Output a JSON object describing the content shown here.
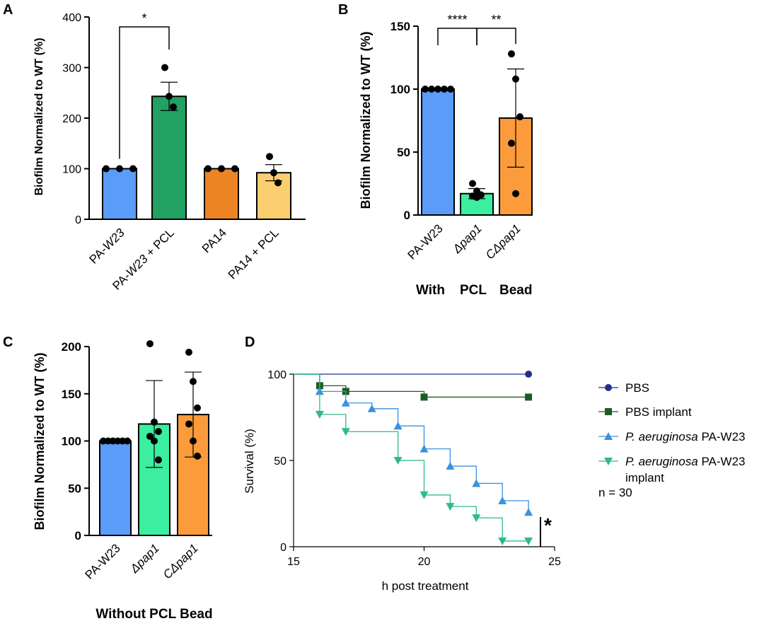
{
  "panels": {
    "A": {
      "letter": "A"
    },
    "B": {
      "letter": "B",
      "group_label_words": [
        "With",
        "PCL",
        "Bead"
      ]
    },
    "C": {
      "letter": "C",
      "group_label": "Without PCL Bead"
    },
    "D": {
      "letter": "D",
      "n_label": "n = 30",
      "sig_label": "*"
    }
  },
  "chart_data": [
    {
      "panel": "A",
      "type": "bar",
      "ylabel": "Biofilm Normalized to  WT (%)",
      "ylim": [
        0,
        400
      ],
      "yticks": [
        0,
        100,
        200,
        300,
        400
      ],
      "categories": [
        "PA-W23",
        "PA-W23 + PCL",
        "PA14",
        "PA14 + PCL"
      ],
      "category_italic": [
        "W23",
        "W23",
        "",
        ""
      ],
      "values": [
        100,
        243,
        100,
        92
      ],
      "error": [
        0,
        28,
        0,
        16
      ],
      "points": [
        [
          100,
          100,
          100
        ],
        [
          300,
          243,
          222
        ],
        [
          100,
          100,
          100
        ],
        [
          124,
          92,
          72
        ]
      ],
      "colors": [
        "#5a9cf8",
        "#21a162",
        "#ec8424",
        "#fbcf70"
      ],
      "significance": [
        {
          "from": 0,
          "to": 1,
          "label": "*"
        }
      ]
    },
    {
      "panel": "B",
      "type": "bar",
      "ylabel": "Biofilm Normalized to  WT (%)",
      "ylim": [
        0,
        150
      ],
      "yticks": [
        0,
        50,
        100,
        150
      ],
      "categories": [
        "PA-W23",
        "Δpap1",
        "CΔpap1"
      ],
      "values": [
        100,
        17,
        77
      ],
      "error": [
        0,
        4,
        39
      ],
      "points": [
        [
          100,
          100,
          100,
          100,
          100
        ],
        [
          25,
          19,
          16,
          15,
          14
        ],
        [
          128,
          108,
          78,
          57,
          17
        ]
      ],
      "colors": [
        "#5a9cf8",
        "#3ceea0",
        "#fb9b3c"
      ],
      "significance": [
        {
          "from": 0,
          "to": 1,
          "label": "****"
        },
        {
          "from": 1,
          "to": 2,
          "label": "**"
        }
      ]
    },
    {
      "panel": "C",
      "type": "bar",
      "ylabel": "Biofilm Normalized to  WT (%)",
      "ylim": [
        0,
        200
      ],
      "yticks": [
        0,
        50,
        100,
        150,
        200
      ],
      "categories": [
        "PA-W23",
        "Δpap1",
        "CΔpap1"
      ],
      "values": [
        100,
        118,
        128
      ],
      "error": [
        0,
        46,
        45
      ],
      "points": [
        [
          100,
          100,
          100,
          100,
          100,
          100
        ],
        [
          203,
          120,
          110,
          105,
          100,
          80
        ],
        [
          194,
          163,
          135,
          118,
          100,
          84
        ]
      ],
      "colors": [
        "#5a9cf8",
        "#3ceea0",
        "#fb9b3c"
      ]
    },
    {
      "panel": "D",
      "type": "line",
      "step": true,
      "xlabel": "h post treatment",
      "ylabel": "Survival (%)",
      "xlim": [
        15,
        25
      ],
      "ylim": [
        0,
        100
      ],
      "xticks": [
        15,
        20,
        25
      ],
      "yticks": [
        0,
        50,
        100
      ],
      "series": [
        {
          "name": "PBS",
          "italic": "",
          "color": "#232e8e",
          "marker": "circle",
          "x": [
            15,
            24
          ],
          "y": [
            100,
            100
          ],
          "marker_x": [
            24
          ],
          "marker_y": [
            100
          ]
        },
        {
          "name": "PBS implant",
          "italic": "",
          "color": "#1f5c25",
          "marker": "square",
          "x": [
            16,
            17,
            20,
            24
          ],
          "y": [
            93.3,
            90,
            86.7,
            86.7
          ],
          "marker_x": [
            16,
            17,
            20,
            24
          ],
          "marker_y": [
            93.3,
            90,
            86.7,
            86.7
          ]
        },
        {
          "name": " PA-W23",
          "italic": "P. aeruginosa",
          "color": "#3a91e0",
          "marker": "triangle-up",
          "x": [
            16,
            17,
            18,
            19,
            20,
            21,
            22,
            23,
            24
          ],
          "y": [
            90,
            83.3,
            80,
            70,
            56.7,
            46.7,
            36.7,
            26.7,
            20
          ],
          "marker_x": [
            16,
            17,
            18,
            19,
            20,
            21,
            22,
            23,
            24
          ],
          "marker_y": [
            90,
            83.3,
            80,
            70,
            56.7,
            46.7,
            36.7,
            26.7,
            20
          ]
        },
        {
          "name": " PA-W23",
          "name_line2": "implant",
          "italic": "P. aeruginosa",
          "color": "#2fb98b",
          "marker": "triangle-down",
          "x": [
            16,
            17,
            19,
            20,
            21,
            22,
            23,
            24
          ],
          "y": [
            76.7,
            66.7,
            50,
            30,
            23.3,
            16.7,
            3.3,
            3.3
          ],
          "marker_x": [
            16,
            17,
            19,
            20,
            21,
            22,
            23,
            24
          ],
          "marker_y": [
            76.7,
            66.7,
            50,
            30,
            23.3,
            16.7,
            3.3,
            3.3
          ]
        }
      ]
    }
  ]
}
